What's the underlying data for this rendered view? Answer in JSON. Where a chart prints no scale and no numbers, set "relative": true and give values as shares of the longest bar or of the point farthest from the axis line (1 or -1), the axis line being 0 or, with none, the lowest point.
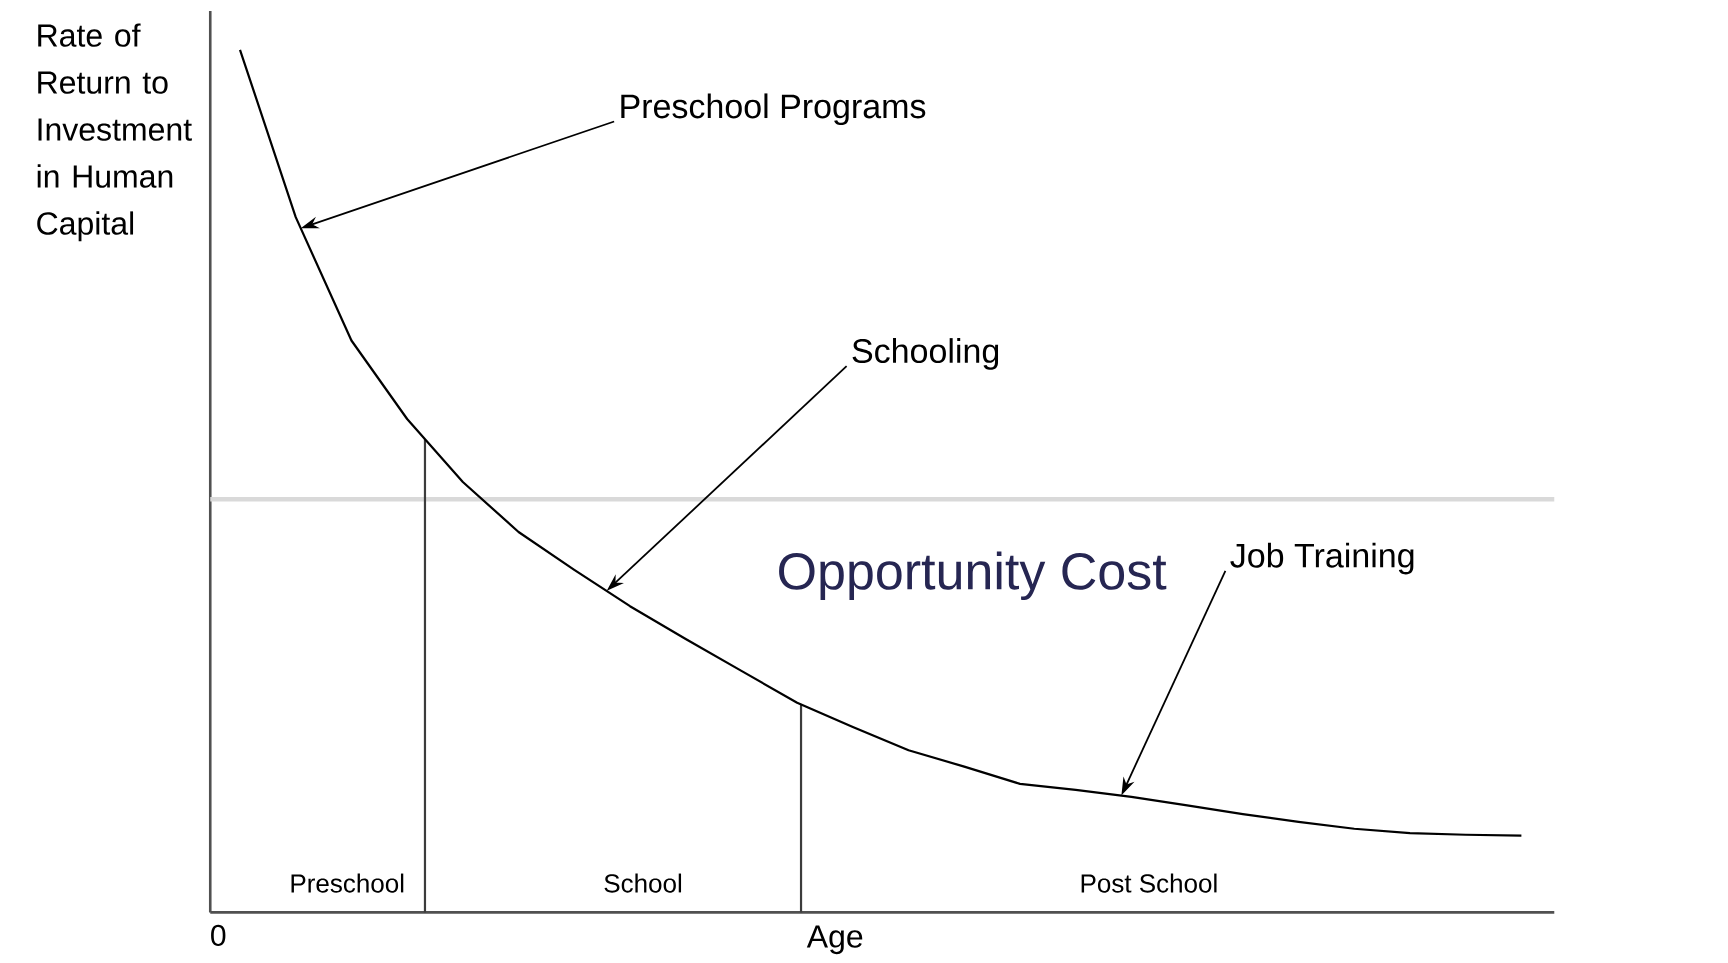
{
  "chart_data": {
    "type": "line",
    "xlabel": "Age",
    "ylabel": "Rate of Return to Investment in Human Capital",
    "relative": true,
    "categories": [
      null,
      null,
      null,
      null,
      null,
      null,
      null,
      null,
      null,
      null,
      null,
      null,
      null,
      null,
      null,
      null,
      null,
      null,
      null,
      null,
      null,
      null,
      null,
      null
    ],
    "series": [
      {
        "color": "#000000",
        "values": [
          1.0,
          0.806,
          0.663,
          0.572,
          0.499,
          0.441,
          0.397,
          0.355,
          0.317,
          0.28,
          0.243,
          0.215,
          0.188,
          0.169,
          0.149,
          0.142,
          0.134,
          0.124,
          0.114,
          0.105,
          0.097,
          0.092,
          0.09,
          0.089
        ]
      }
    ],
    "ref_lines": [
      {
        "axis": "y",
        "value": 0.479,
        "label": "Opportunity Cost",
        "color": "#d9d9d9"
      }
    ],
    "annotations": [
      "Preschool Programs",
      "Schooling",
      "Job Training",
      "Preschool",
      "School",
      "Post School",
      "0"
    ],
    "marker": "none",
    "line_style": "solid"
  }
}
